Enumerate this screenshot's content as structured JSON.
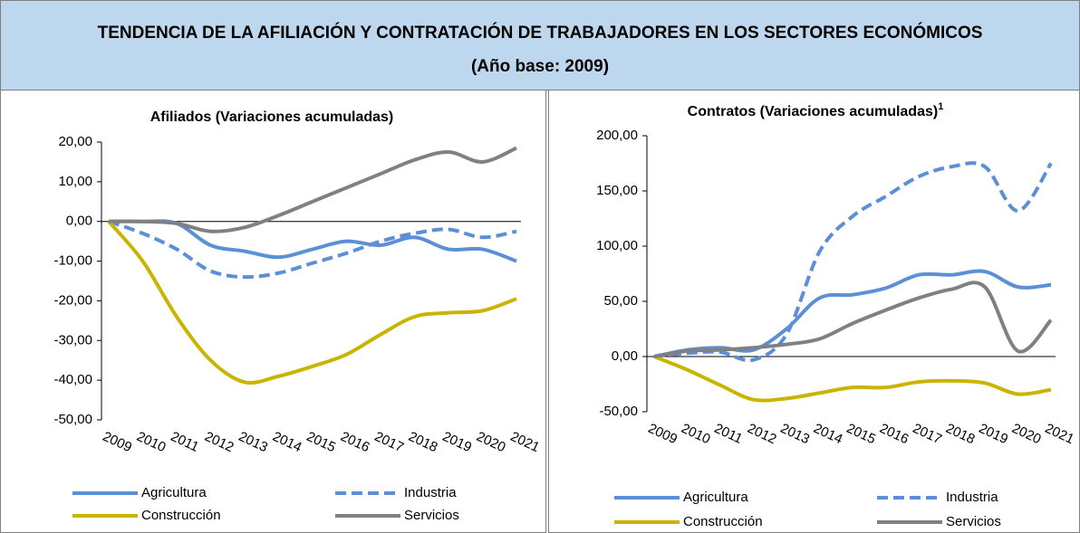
{
  "header": {
    "title": "TENDENCIA DE LA AFILIACIÓN Y CONTRATACIÓN DE TRABAJADORES EN LOS SECTORES ECONÓMICOS",
    "subtitle": "(Año base: 2009)"
  },
  "chart_data": [
    {
      "type": "line",
      "title": "Afiliados (Variaciones acumuladas)",
      "categories": [
        "2009",
        "2010",
        "2011",
        "2012",
        "2013",
        "2014",
        "2015",
        "2016",
        "2017",
        "2018",
        "2019",
        "2020",
        "2021"
      ],
      "ylim": [
        -50,
        20
      ],
      "yticks": [
        {
          "value": -50,
          "label": "-50,00"
        },
        {
          "value": -40,
          "label": "-40,00"
        },
        {
          "value": -30,
          "label": "-30,00"
        },
        {
          "value": -20,
          "label": "-20,00"
        },
        {
          "value": -10,
          "label": "-10,00"
        },
        {
          "value": 0,
          "label": "0,00"
        },
        {
          "value": 10,
          "label": "10,00"
        },
        {
          "value": 20,
          "label": "20,00"
        }
      ],
      "series": [
        {
          "name": "Agricultura",
          "color": "#5b8fd6",
          "dashed": false,
          "values": [
            0,
            0,
            -0.5,
            -6,
            -7.5,
            -9,
            -7,
            -5,
            -6,
            -4,
            -7,
            -7,
            -10
          ]
        },
        {
          "name": "Industria",
          "color": "#5b8fd6",
          "dashed": true,
          "values": [
            0,
            -3,
            -7,
            -12.5,
            -14,
            -13,
            -10.5,
            -8,
            -5,
            -3,
            -2,
            -4,
            -2.5
          ]
        },
        {
          "name": "Construcción",
          "color": "#c9b400",
          "dashed": false,
          "values": [
            0,
            -10,
            -24,
            -35,
            -40.5,
            -39,
            -36.5,
            -33.5,
            -28.5,
            -24,
            -23,
            -22.5,
            -19.5
          ]
        },
        {
          "name": "Servicios",
          "color": "#808080",
          "dashed": false,
          "values": [
            0,
            0,
            -0.5,
            -2.5,
            -1.5,
            1.5,
            5,
            8.5,
            12,
            15.5,
            17.5,
            15,
            18.5
          ]
        }
      ]
    },
    {
      "type": "line",
      "title": "Contratos (Variaciones acumuladas)",
      "title_note": "1",
      "categories": [
        "2009",
        "2010",
        "2011",
        "2012",
        "2013",
        "2014",
        "2015",
        "2016",
        "2017",
        "2018",
        "2019",
        "2020",
        "2021"
      ],
      "ylim": [
        -50,
        200
      ],
      "yticks": [
        {
          "value": -50,
          "label": "-50,00"
        },
        {
          "value": 0,
          "label": "0,00"
        },
        {
          "value": 50,
          "label": "50,00"
        },
        {
          "value": 100,
          "label": "100,00"
        },
        {
          "value": 150,
          "label": "150,00"
        },
        {
          "value": 200,
          "label": "200,00"
        }
      ],
      "series": [
        {
          "name": "Agricultura",
          "color": "#5b8fd6",
          "dashed": false,
          "values": [
            0,
            6,
            8,
            6,
            25,
            53,
            56,
            62,
            74,
            74,
            77,
            63,
            65
          ]
        },
        {
          "name": "Industria",
          "color": "#5b8fd6",
          "dashed": true,
          "values": [
            0,
            3,
            4,
            -3,
            20,
            95,
            127,
            145,
            163,
            172,
            172,
            132,
            175
          ]
        },
        {
          "name": "Construcción",
          "color": "#c9b400",
          "dashed": false,
          "values": [
            0,
            -12,
            -26,
            -39,
            -38,
            -33,
            -28,
            -28,
            -23,
            -22,
            -24,
            -34,
            -30
          ]
        },
        {
          "name": "Servicios",
          "color": "#808080",
          "dashed": false,
          "values": [
            0,
            5,
            6,
            8,
            11,
            16,
            30,
            42,
            53,
            61,
            63,
            5,
            33
          ]
        }
      ]
    }
  ]
}
